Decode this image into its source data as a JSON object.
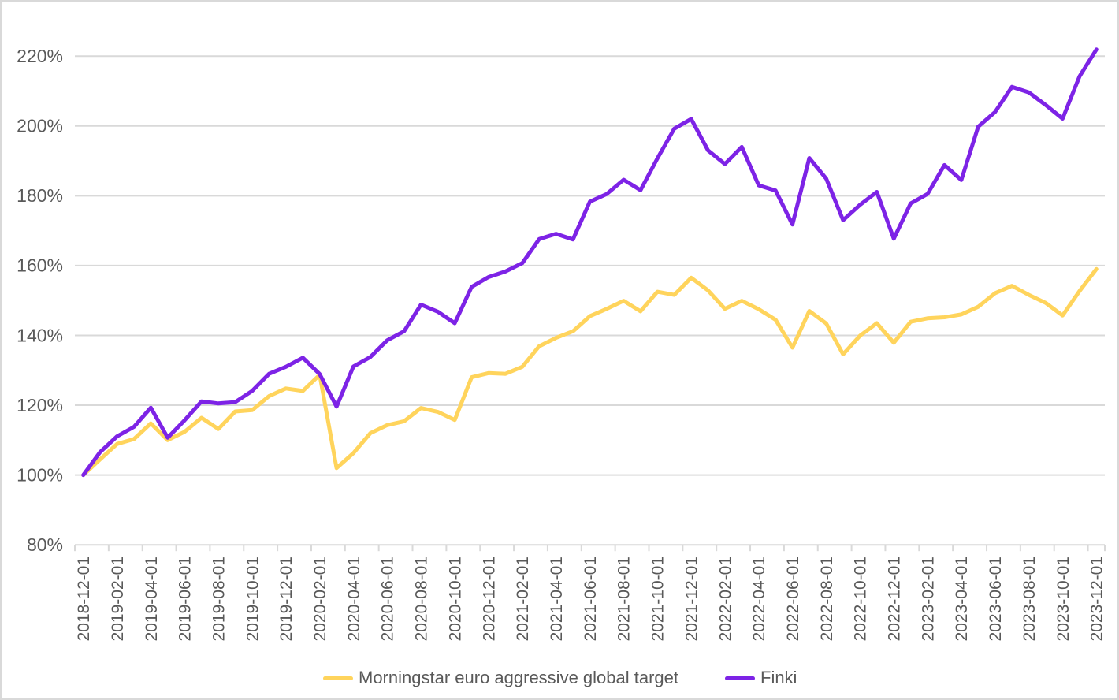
{
  "chart_data": {
    "type": "line",
    "title": "",
    "xlabel": "",
    "ylabel": "",
    "y_tick_format": "percent",
    "yticks": [
      80,
      100,
      120,
      140,
      160,
      180,
      200,
      220
    ],
    "ylim": [
      80,
      232
    ],
    "grid": true,
    "legend_position": "bottom-center",
    "x_labels_every": 2,
    "x": [
      "2018-12-01",
      "2019-01-01",
      "2019-02-01",
      "2019-03-01",
      "2019-04-01",
      "2019-05-01",
      "2019-06-01",
      "2019-07-01",
      "2019-08-01",
      "2019-09-01",
      "2019-10-01",
      "2019-11-01",
      "2019-12-01",
      "2020-01-01",
      "2020-02-01",
      "2020-03-01",
      "2020-04-01",
      "2020-05-01",
      "2020-06-01",
      "2020-07-01",
      "2020-08-01",
      "2020-09-01",
      "2020-10-01",
      "2020-11-01",
      "2020-12-01",
      "2021-01-01",
      "2021-02-01",
      "2021-03-01",
      "2021-04-01",
      "2021-05-01",
      "2021-06-01",
      "2021-07-01",
      "2021-08-01",
      "2021-09-01",
      "2021-10-01",
      "2021-11-01",
      "2021-12-01",
      "2022-01-01",
      "2022-02-01",
      "2022-03-01",
      "2022-04-01",
      "2022-05-01",
      "2022-06-01",
      "2022-07-01",
      "2022-08-01",
      "2022-09-01",
      "2022-10-01",
      "2022-11-01",
      "2022-12-01",
      "2023-01-01",
      "2023-02-01",
      "2023-03-01",
      "2023-04-01",
      "2023-05-01",
      "2023-06-01",
      "2023-07-01",
      "2023-08-01",
      "2023-09-01",
      "2023-10-01",
      "2023-11-01",
      "2023-12-01"
    ],
    "series": [
      {
        "name": "Morningstar euro aggressive global target",
        "color": "#FFD45C",
        "values": [
          100.0,
          104.5,
          108.9,
          110.3,
          114.8,
          110.0,
          112.4,
          116.4,
          113.2,
          118.2,
          118.6,
          122.6,
          124.8,
          124.1,
          128.7,
          102.0,
          106.3,
          112.0,
          114.3,
          115.4,
          119.2,
          118.1,
          115.8,
          128.0,
          129.2,
          129.0,
          131.0,
          136.9,
          139.3,
          141.2,
          145.5,
          147.6,
          149.9,
          146.9,
          152.5,
          151.6,
          156.5,
          152.9,
          147.6,
          149.9,
          147.5,
          144.5,
          136.5,
          147.0,
          143.4,
          134.6,
          139.9,
          143.5,
          137.9,
          143.9,
          144.9,
          145.2,
          146.0,
          148.2,
          152.1,
          154.2,
          151.6,
          149.3,
          145.7,
          152.7,
          159.0
        ]
      },
      {
        "name": "Finki",
        "color": "#7D23E6",
        "values": [
          100.0,
          106.6,
          111.1,
          113.8,
          119.3,
          110.7,
          115.7,
          121.1,
          120.5,
          120.9,
          124.1,
          129.0,
          131.0,
          133.6,
          128.9,
          119.6,
          131.1,
          133.8,
          138.6,
          141.2,
          148.8,
          146.8,
          143.5,
          153.9,
          156.7,
          158.3,
          160.7,
          167.6,
          169.1,
          167.5,
          178.3,
          180.5,
          184.6,
          181.6,
          190.7,
          199.2,
          202.0,
          193.0,
          189.1,
          194.0,
          183.0,
          181.5,
          171.8,
          190.8,
          184.9,
          173.0,
          177.4,
          181.1,
          167.7,
          177.8,
          180.5,
          188.8,
          184.5,
          199.8,
          204.0,
          211.2,
          209.6,
          206.0,
          202.1,
          214.2,
          221.9
        ]
      }
    ],
    "colors": {
      "gridline": "#D9D9D9",
      "axis_text": "#595959",
      "background": "#FFFFFF",
      "border": "#D9D9D9"
    }
  }
}
